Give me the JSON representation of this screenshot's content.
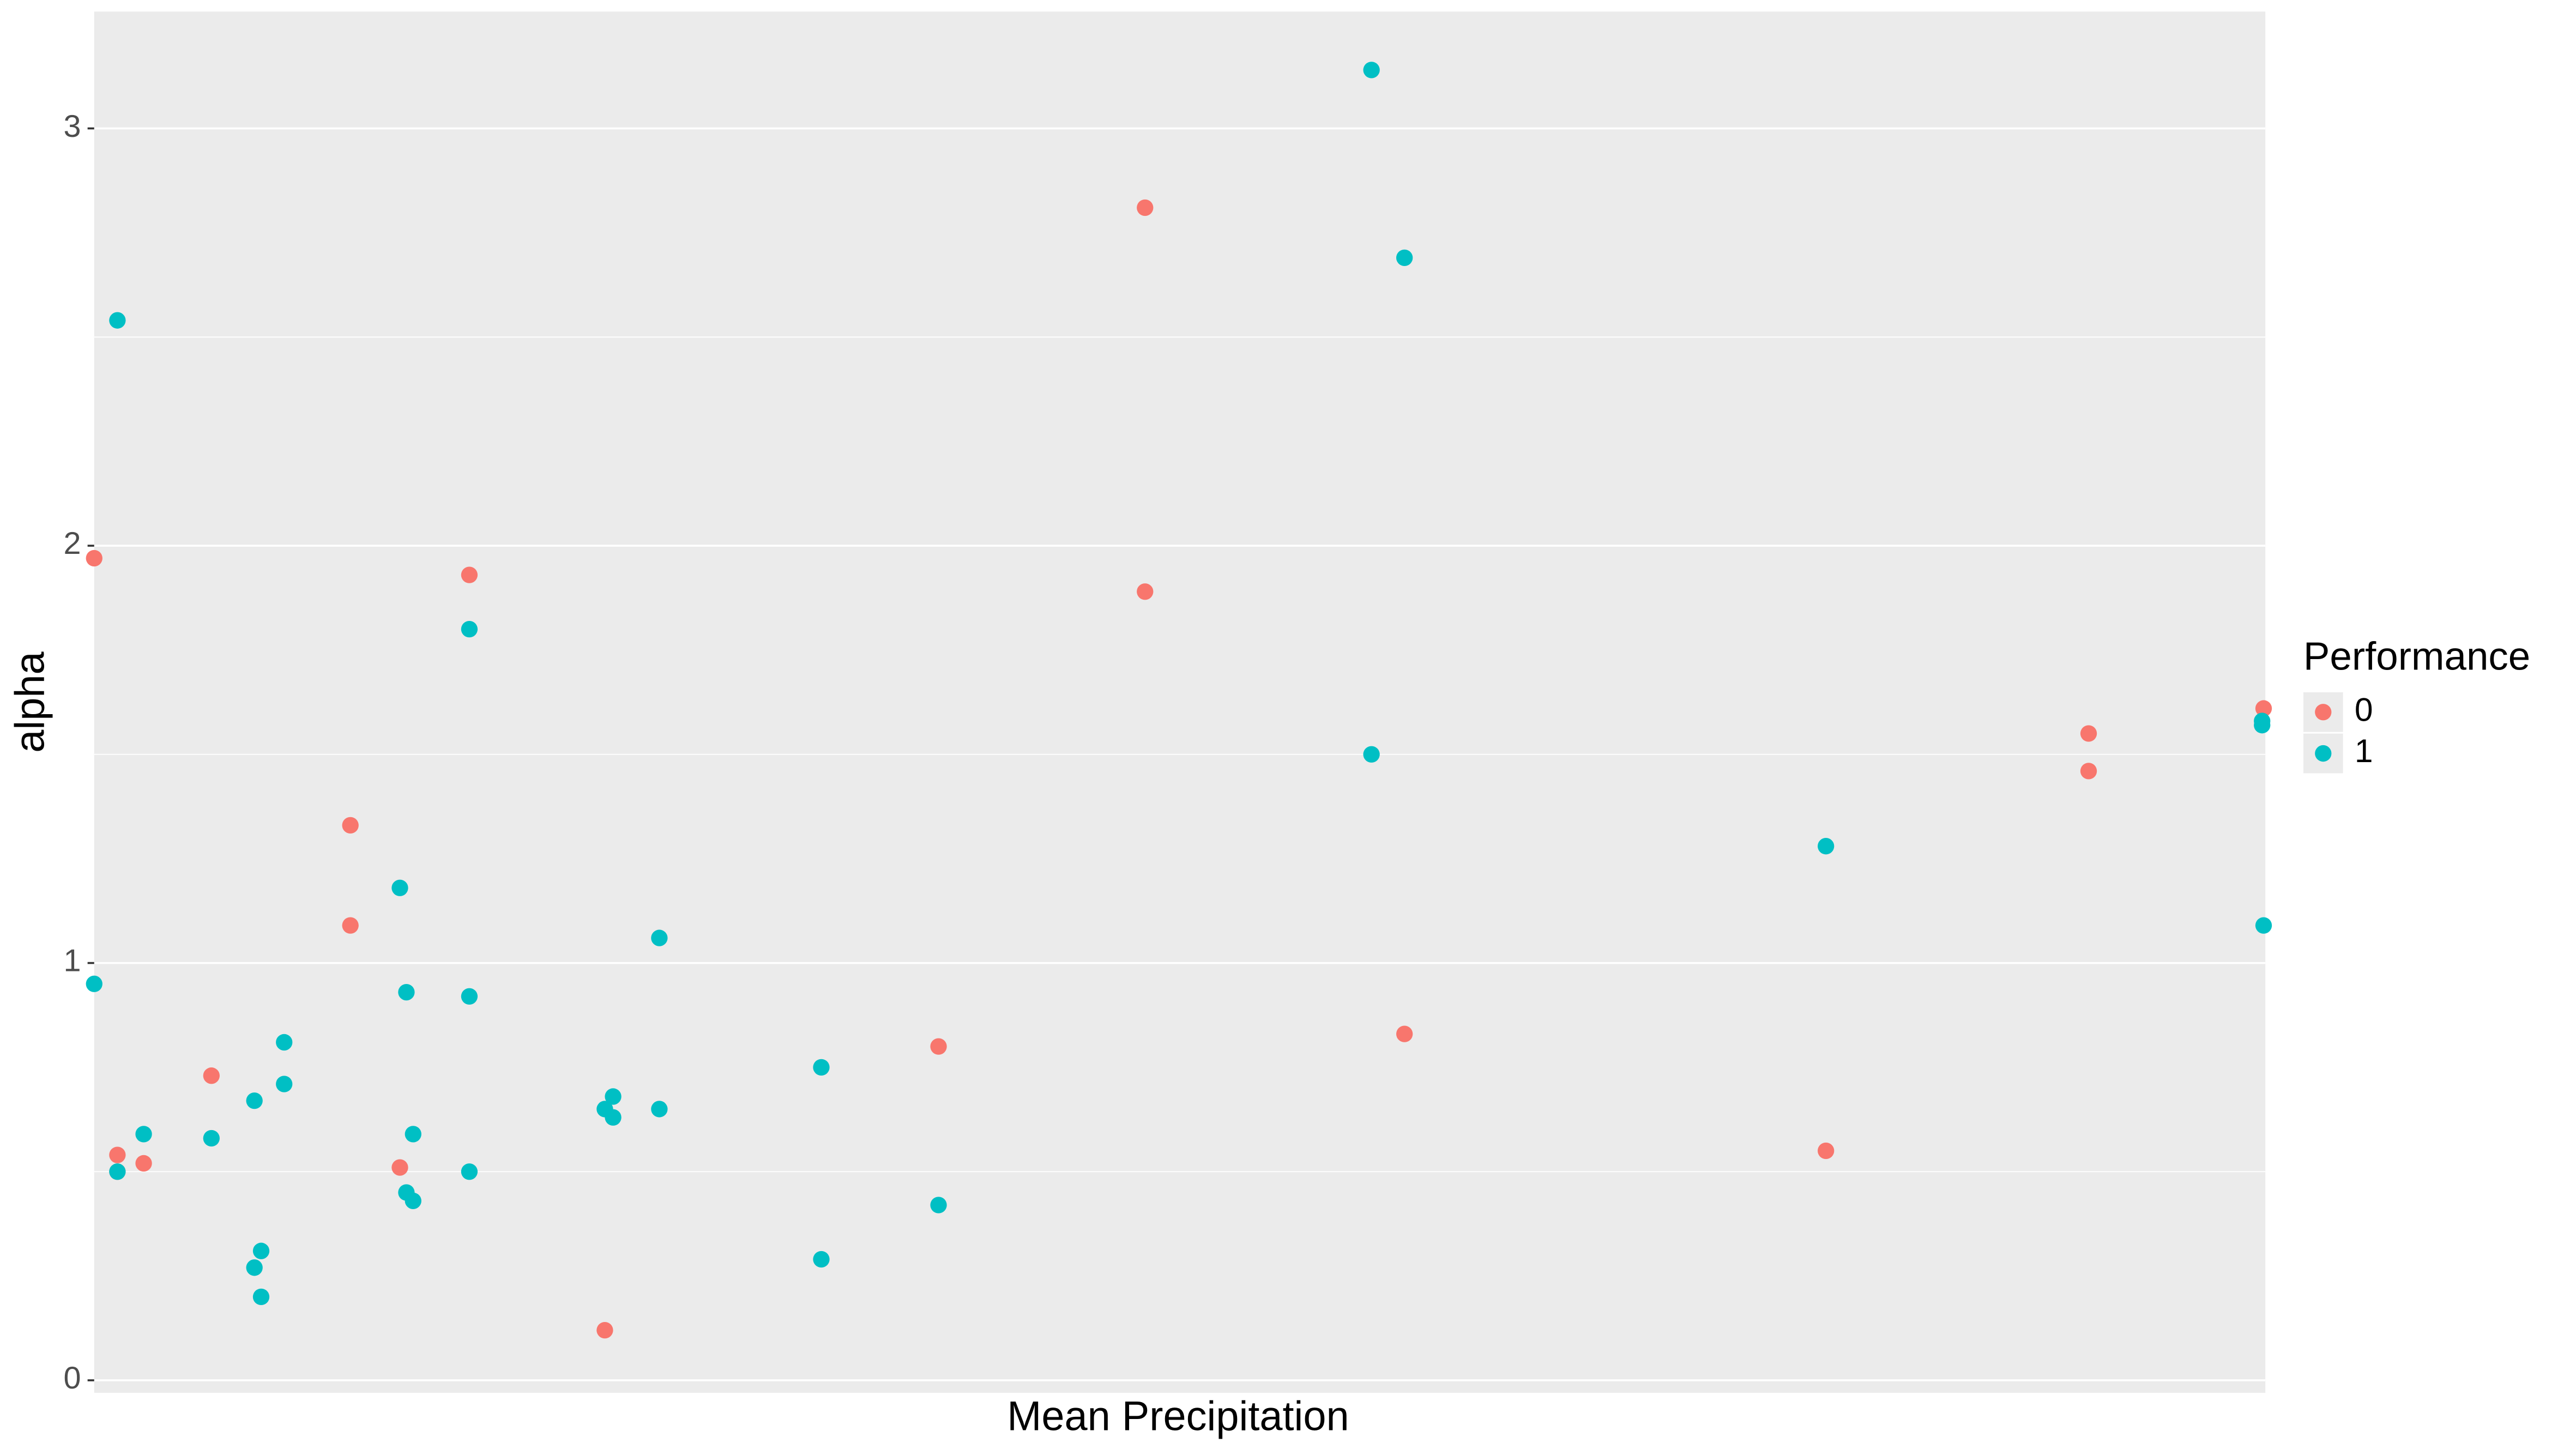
{
  "chart_data": {
    "type": "scatter",
    "x_label": "Mean Precipitation",
    "y_label": "alpha",
    "legend_title": "Performance",
    "legend_position": "right",
    "grid": true,
    "panel_color": "#ebebeb",
    "xlim": [
      0,
      100
    ],
    "ylim": [
      -0.03,
      3.28
    ],
    "yticks": [
      0,
      1,
      2,
      3
    ],
    "minor_yticks": [
      0.5,
      1.5,
      2.5
    ],
    "series": [
      {
        "name": "0",
        "color": "#f8766d",
        "x": [
          0,
          1.07,
          1.07,
          2.28,
          5.4,
          11.8,
          11.8,
          14.08,
          17.28,
          23.52,
          38.89,
          48.4,
          48.4,
          60.35,
          79.76,
          91.86,
          91.86,
          99.92
        ],
        "values": [
          1.97,
          0.54,
          0.5,
          0.52,
          0.73,
          1.33,
          1.09,
          0.51,
          1.93,
          0.12,
          0.8,
          2.81,
          1.89,
          0.83,
          0.55,
          1.55,
          1.46,
          1.61
        ]
      },
      {
        "name": "1",
        "color": "#00bfc4",
        "x": [
          0,
          1.07,
          1.07,
          2.28,
          5.4,
          7.38,
          7.38,
          7.69,
          7.69,
          8.75,
          8.75,
          14.08,
          14.38,
          14.38,
          14.69,
          14.69,
          17.28,
          17.28,
          17.28,
          23.52,
          23.9,
          23.9,
          26.03,
          26.03,
          33.49,
          33.49,
          38.89,
          58.83,
          60.35,
          58.83,
          79.76,
          99.85,
          99.85,
          99.92
        ],
        "values": [
          0.95,
          2.54,
          0.5,
          0.59,
          0.58,
          0.67,
          0.27,
          0.31,
          0.2,
          0.81,
          0.71,
          1.18,
          0.93,
          0.45,
          0.59,
          0.43,
          1.8,
          0.92,
          0.5,
          0.65,
          0.68,
          0.63,
          1.06,
          0.65,
          0.75,
          0.29,
          0.42,
          3.14,
          2.69,
          1.5,
          1.28,
          1.58,
          1.57,
          1.09
        ]
      }
    ]
  }
}
